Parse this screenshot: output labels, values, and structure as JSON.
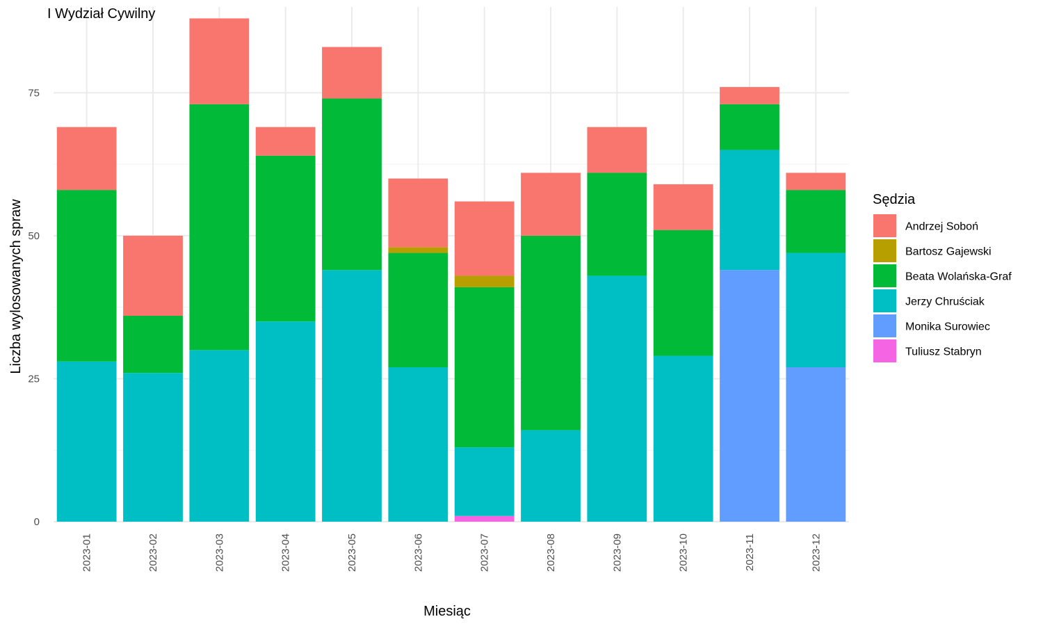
{
  "chart_data": {
    "type": "bar",
    "stacked": true,
    "title": "I Wydział Cywilny",
    "xlabel": "Miesiąc",
    "ylabel": "Liczba wylosowanych spraw",
    "ylim": [
      0,
      90
    ],
    "yticks": [
      0,
      25,
      50,
      75
    ],
    "grid": true,
    "legend_position": "right",
    "legend_title": "Sędzia",
    "categories": [
      "2023-01",
      "2023-02",
      "2023-03",
      "2023-04",
      "2023-05",
      "2023-06",
      "2023-07",
      "2023-08",
      "2023-09",
      "2023-10",
      "2023-11",
      "2023-12"
    ],
    "stack_order": [
      "Tuliusz Stabryn",
      "Monika Surowiec",
      "Jerzy Chruściak",
      "Beata Wolańska-Graf",
      "Bartosz Gajewski",
      "Andrzej Soboń"
    ],
    "series": [
      {
        "name": "Andrzej Soboń",
        "color": "#F8766D",
        "values": [
          11,
          14,
          15,
          5,
          9,
          12,
          13,
          11,
          8,
          8,
          3,
          3
        ]
      },
      {
        "name": "Bartosz Gajewski",
        "color": "#B79F00",
        "values": [
          0,
          0,
          0,
          0,
          0,
          1,
          2,
          0,
          0,
          0,
          0,
          0
        ]
      },
      {
        "name": "Beata Wolańska-Graf",
        "color": "#00BA38",
        "values": [
          30,
          10,
          43,
          29,
          30,
          20,
          28,
          34,
          18,
          22,
          8,
          11
        ]
      },
      {
        "name": "Jerzy Chruściak",
        "color": "#00BFC4",
        "values": [
          28,
          26,
          30,
          35,
          44,
          27,
          12,
          16,
          43,
          29,
          21,
          20
        ]
      },
      {
        "name": "Monika Surowiec",
        "color": "#619CFF",
        "values": [
          0,
          0,
          0,
          0,
          0,
          0,
          0,
          0,
          0,
          0,
          44,
          27
        ]
      },
      {
        "name": "Tuliusz Stabryn",
        "color": "#F564E3",
        "values": [
          0,
          0,
          0,
          0,
          0,
          0,
          1,
          0,
          0,
          0,
          0,
          0
        ]
      }
    ]
  }
}
